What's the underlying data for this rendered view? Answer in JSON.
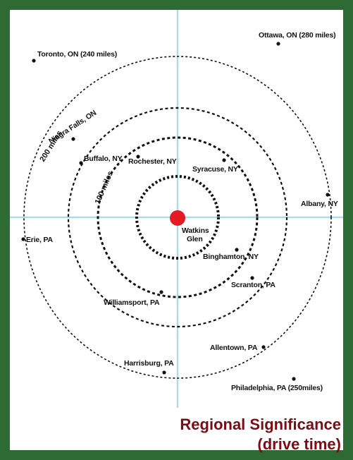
{
  "title": {
    "line1": "Regional Significance",
    "line2": "(drive time)"
  },
  "colors": {
    "frame": "#2e6a34",
    "axis_lines": "#aadcec",
    "center_marker": "#e31b23",
    "title": "#7a0c14"
  },
  "center": {
    "name": "Watkins Glen",
    "label_lines": [
      "Watkins",
      "Glen"
    ]
  },
  "rings": [
    {
      "id": "inner",
      "label": ""
    },
    {
      "id": "middle",
      "label": ""
    },
    {
      "id": "100",
      "label": "100 miles"
    },
    {
      "id": "200",
      "label": "200 miles"
    }
  ],
  "places": [
    {
      "id": "toronto",
      "label": "Toronto, ON (240 miles)"
    },
    {
      "id": "ottawa",
      "label": "Ottawa, ON (280 miles)"
    },
    {
      "id": "niagra",
      "label": "Niagra Falls, ON"
    },
    {
      "id": "buffalo",
      "label": "Buffalo, NY"
    },
    {
      "id": "rochester",
      "label": "Rochester, NY"
    },
    {
      "id": "syracuse",
      "label": "Syracuse, NY"
    },
    {
      "id": "albany",
      "label": "Albany, NY"
    },
    {
      "id": "erie",
      "label": "Erie,  PA"
    },
    {
      "id": "binghamton",
      "label": "Binghamton, NY"
    },
    {
      "id": "scranton",
      "label": "Scranton, PA"
    },
    {
      "id": "williamsport",
      "label": "Williamsport, PA"
    },
    {
      "id": "allentown",
      "label": "Allentown, PA"
    },
    {
      "id": "harrisburg",
      "label": "Harrisburg, PA"
    },
    {
      "id": "philadelphia",
      "label": "Philadelphia, PA (250miles)"
    }
  ]
}
